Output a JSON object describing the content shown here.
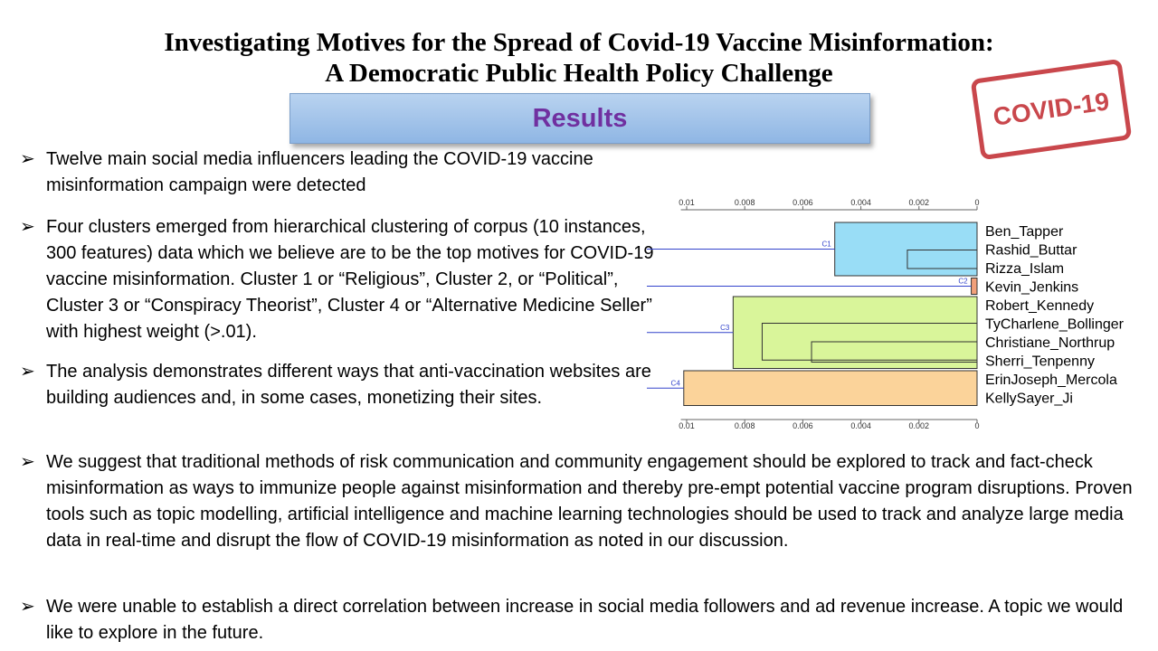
{
  "title_line1": "Investigating Motives for the Spread of Covid-19 Vaccine Misinformation:",
  "title_line2": "A Democratic Public Health Policy Challenge",
  "section_label": "Results",
  "stamp_text": "COVID-19",
  "bullets": [
    "Twelve main social media influencers leading the COVID-19 vaccine misinformation campaign were detected",
    "Four clusters emerged from hierarchical clustering of corpus (10 instances, 300 features) data which we believe are to be the top motives for COVID-19 vaccine misinformation. Cluster 1 or “Religious”, Cluster 2, or “Political”, Cluster 3 or “Conspiracy Theorist”, Cluster 4 or “Alternative Medicine Seller” with highest weight (>.01).",
    "The analysis demonstrates different ways that anti-vaccination websites are building audiences and, in some cases, monetizing their sites.",
    "We suggest that traditional methods of risk communication and community engagement should be explored to track and fact-check misinformation as ways to immunize people against misinformation and thereby pre-empt potential vaccine program disruptions. Proven tools such as topic modelling, artificial intelligence and machine learning technologies should be used to track and analyze large media data in real-time and disrupt the flow of COVID-19 misinformation as noted in our discussion.",
    "We were  unable to establish a direct correlation between increase in social media followers and ad revenue increase. A topic we would like to explore in the future."
  ],
  "colors": {
    "title_box_top": "#b9d3f0",
    "title_box_bottom": "#8fb6e4",
    "results_text": "#7030a0",
    "stamp": "#c0282d",
    "cluster1": "#99ddf6",
    "cluster2": "#f2a07a",
    "cluster3": "#d9f59a",
    "cluster4": "#fbd39a",
    "branch_line": "#3344cc"
  },
  "chart_data": {
    "type": "dendrogram",
    "axis_ticks": [
      "0.01",
      "0.008",
      "0.006",
      "0.004",
      "0.002",
      "0"
    ],
    "axis_tick_values": [
      0.01,
      0.008,
      0.006,
      0.004,
      0.002,
      0
    ],
    "leaves": [
      "Ben_Tapper",
      "Rashid_Buttar",
      "Rizza_Islam",
      "Kevin_Jenkins",
      "Robert_Kennedy",
      "TyCharlene_Bollinger",
      "Christiane_Northrup",
      "Sherri_Tenpenny",
      "ErinJoseph_Mercola",
      "KellySayer_Ji"
    ],
    "clusters": [
      {
        "label": "C1",
        "leaves": [
          0,
          1,
          2
        ],
        "height": 0.0049,
        "color": "#99ddf6"
      },
      {
        "label": "C2",
        "leaves": [
          3
        ],
        "height": 0.0002,
        "color": "#f2a07a"
      },
      {
        "label": "C3",
        "leaves": [
          4,
          5,
          6,
          7
        ],
        "height": 0.0084,
        "color": "#d9f59a"
      },
      {
        "label": "C4",
        "leaves": [
          8,
          9
        ],
        "height": 0.0101,
        "color": "#fbd39a"
      }
    ],
    "merges": [
      {
        "a": 1,
        "b": 2,
        "height": 0.0024
      },
      {
        "a": 0,
        "b": "1-2",
        "height": 0.0049
      },
      {
        "a": 6,
        "b": 7,
        "height": 0.0057
      },
      {
        "a": 5,
        "b": "6-7",
        "height": 0.0074
      },
      {
        "a": 4,
        "b": "5-7",
        "height": 0.0084
      },
      {
        "a": 8,
        "b": 9,
        "height": 0.0101
      }
    ]
  }
}
